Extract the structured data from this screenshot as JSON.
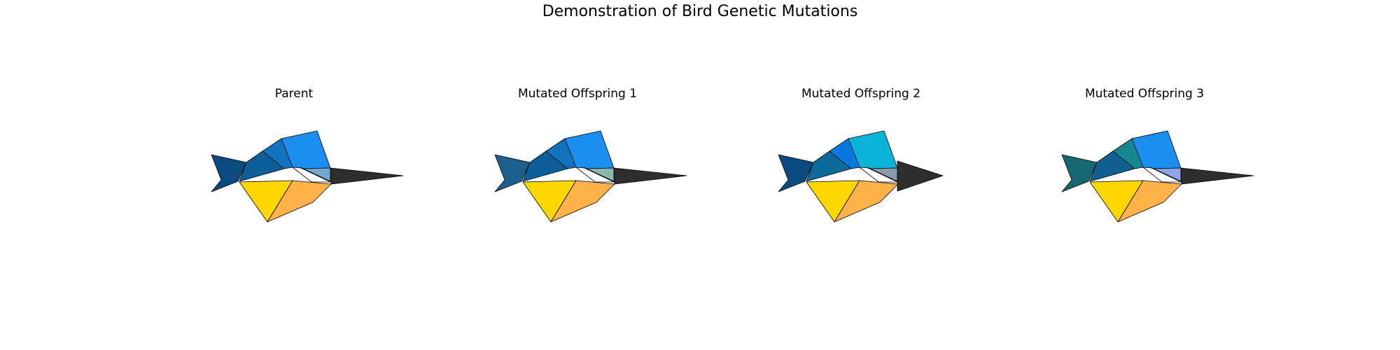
{
  "title": "Demonstration of Bird Genetic Mutations",
  "panels": [
    {
      "label": "Parent",
      "colors": {
        "tail": "#0a4a7e",
        "back": "#0d5f9c",
        "neck": "#1272bb",
        "wing": "#1b8ef0",
        "head": "#74a8cf",
        "throat": "#ffffff",
        "chest": "#ffd700",
        "belly": "#ffb24a",
        "beak": "#2e2e2e"
      },
      "beak_shape": "long"
    },
    {
      "label": "Mutated Offspring 1",
      "colors": {
        "tail": "#1d5f8c",
        "back": "#0d5f9c",
        "neck": "#1272bb",
        "wing": "#1b8ef0",
        "head": "#88b8b0",
        "throat": "#ffffff",
        "chest": "#ffd700",
        "belly": "#ffb24a",
        "beak": "#2e2e2e"
      },
      "beak_shape": "long"
    },
    {
      "label": "Mutated Offspring 2",
      "colors": {
        "tail": "#0a4a7e",
        "back": "#0d6a9a",
        "neck": "#0b78e0",
        "wing": "#0ab4d8",
        "head": "#8a9bb0",
        "throat": "#ffffff",
        "chest": "#ffd700",
        "belly": "#ffb24a",
        "beak": "#2e2e2e"
      },
      "beak_shape": "short"
    },
    {
      "label": "Mutated Offspring 3",
      "colors": {
        "tail": "#176772",
        "back": "#116090",
        "neck": "#15878f",
        "wing": "#1b8ef0",
        "head": "#8fa4e6",
        "throat": "#ffffff",
        "chest": "#ffd700",
        "belly": "#ffb24a",
        "beak": "#2e2e2e"
      },
      "beak_shape": "long"
    }
  ]
}
